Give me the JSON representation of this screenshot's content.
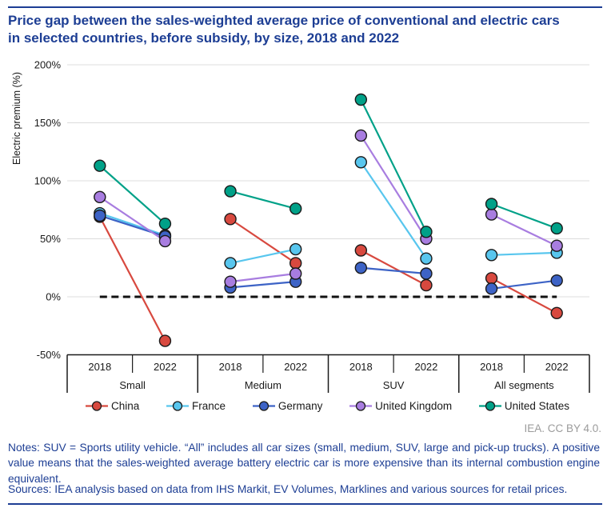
{
  "header": {
    "title_line1": "Price gap between the sales-weighted average price of conventional and electric cars",
    "title_line2": "in selected countries, before subsidy, by size, 2018 and 2022"
  },
  "chart_data": {
    "type": "line",
    "title": "Price gap between the sales-weighted average price of conventional and electric cars in selected countries, before subsidy, by size, 2018 and 2022",
    "ylabel": "Electric premium (%)",
    "ylim": [
      -50,
      200
    ],
    "yticks": [
      200,
      150,
      100,
      50,
      0,
      -50
    ],
    "ytick_suffix": "%",
    "grid": "horizontal",
    "zero_line": "dashed-black",
    "legend_position": "bottom",
    "groups": [
      "Small",
      "Medium",
      "SUV",
      "All segments"
    ],
    "years": [
      "2018",
      "2022"
    ],
    "series": [
      {
        "name": "China",
        "color": "#d8493f",
        "values": [
          [
            69,
            -38
          ],
          [
            67,
            29
          ],
          [
            40,
            10
          ],
          [
            16,
            -14
          ]
        ]
      },
      {
        "name": "France",
        "color": "#58c6ee",
        "values": [
          [
            72,
            53
          ],
          [
            29,
            41
          ],
          [
            116,
            33
          ],
          [
            36,
            38
          ]
        ]
      },
      {
        "name": "Germany",
        "color": "#3d63c6",
        "values": [
          [
            70,
            52
          ],
          [
            8,
            13
          ],
          [
            25,
            20
          ],
          [
            7,
            14
          ]
        ]
      },
      {
        "name": "United Kingdom",
        "color": "#a87de0",
        "values": [
          [
            86,
            48
          ],
          [
            13,
            20
          ],
          [
            139,
            50
          ],
          [
            71,
            44
          ]
        ]
      },
      {
        "name": "United States",
        "color": "#00a188",
        "values": [
          [
            113,
            63
          ],
          [
            91,
            76
          ],
          [
            170,
            56
          ],
          [
            80,
            59
          ]
        ]
      }
    ]
  },
  "credit": "IEA. CC BY 4.0.",
  "notes": "Notes: SUV = Sports utility vehicle. “All” includes all car sizes (small, medium, SUV, large and pick-up trucks). A positive value means that the sales-weighted average battery electric car is more expensive than its internal combustion engine equivalent.",
  "sources": "Sources: IEA analysis based on data from IHS Markit, EV Volumes, Marklines and various sources for retail prices."
}
